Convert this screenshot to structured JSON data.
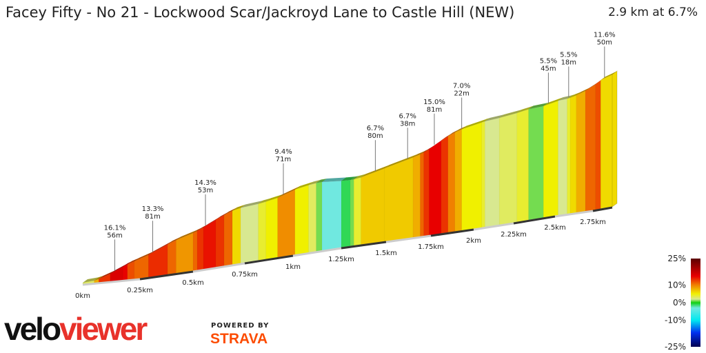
{
  "header": {
    "title": "Facey Fifty - No 21 - Lockwood Scar/Jackroyd Lane to Castle Hill (NEW)",
    "summary": "2.9 km at 6.7%"
  },
  "chart_data": {
    "type": "area",
    "title": "Facey Fifty - No 21 - Lockwood Scar/Jackroyd Lane to Castle Hill (NEW)",
    "xlabel": "",
    "ylabel": "",
    "xlim": [
      0,
      2.9
    ],
    "x_ticks": [
      "0km",
      "0.25km",
      "0.5km",
      "0.75km",
      "1km",
      "1.25km",
      "1.5km",
      "1.75km",
      "2km",
      "2.25km",
      "2.5km",
      "2.75km"
    ],
    "x_tick_values": [
      0,
      0.25,
      0.5,
      0.75,
      1,
      1.25,
      1.5,
      1.75,
      2,
      2.25,
      2.5,
      2.75
    ],
    "segments_km_end_gradient_pct": [
      [
        0.05,
        3
      ],
      [
        0.07,
        8
      ],
      [
        0.12,
        13
      ],
      [
        0.175,
        16
      ],
      [
        0.195,
        15
      ],
      [
        0.225,
        12
      ],
      [
        0.29,
        11
      ],
      [
        0.38,
        13.3
      ],
      [
        0.42,
        11
      ],
      [
        0.5,
        9
      ],
      [
        0.52,
        11
      ],
      [
        0.55,
        13
      ],
      [
        0.61,
        14.3
      ],
      [
        0.65,
        13
      ],
      [
        0.69,
        11
      ],
      [
        0.73,
        6
      ],
      [
        0.82,
        2
      ],
      [
        0.86,
        4
      ],
      [
        0.92,
        5
      ],
      [
        1.01,
        9.4
      ],
      [
        1.08,
        5
      ],
      [
        1.12,
        3
      ],
      [
        1.15,
        1
      ],
      [
        1.25,
        -3
      ],
      [
        1.3,
        -1
      ],
      [
        1.32,
        1
      ],
      [
        1.36,
        4
      ],
      [
        1.49,
        6.7
      ],
      [
        1.65,
        6.7
      ],
      [
        1.69,
        8
      ],
      [
        1.71,
        11
      ],
      [
        1.74,
        13
      ],
      [
        1.81,
        15
      ],
      [
        1.85,
        13
      ],
      [
        1.89,
        10
      ],
      [
        1.93,
        8
      ],
      [
        2.05,
        5
      ],
      [
        2.07,
        4
      ],
      [
        2.16,
        2
      ],
      [
        2.27,
        3
      ],
      [
        2.34,
        4
      ],
      [
        2.43,
        1
      ],
      [
        2.52,
        5
      ],
      [
        2.58,
        2
      ],
      [
        2.6,
        4
      ],
      [
        2.64,
        6
      ],
      [
        2.7,
        8
      ],
      [
        2.77,
        11
      ],
      [
        2.81,
        12
      ],
      [
        2.9,
        6
      ]
    ],
    "annotations": [
      {
        "km": 0.14,
        "grade": "16.1%",
        "length": "56m"
      },
      {
        "km": 0.31,
        "grade": "13.3%",
        "length": "81m"
      },
      {
        "km": 0.56,
        "grade": "14.3%",
        "length": "53m"
      },
      {
        "km": 0.95,
        "grade": "9.4%",
        "length": "71m"
      },
      {
        "km": 1.44,
        "grade": "6.7%",
        "length": "80m"
      },
      {
        "km": 1.62,
        "grade": "6.7%",
        "length": "38m"
      },
      {
        "km": 1.77,
        "grade": "15.0%",
        "length": "81m"
      },
      {
        "km": 1.93,
        "grade": "7.0%",
        "length": "22m"
      },
      {
        "km": 2.46,
        "grade": "5.5%",
        "length": "45m"
      },
      {
        "km": 2.59,
        "grade": "5.5%",
        "length": "18m"
      },
      {
        "km": 2.84,
        "grade": "11.6%",
        "length": "50m"
      }
    ],
    "legend": {
      "labels": [
        "25%",
        "10%",
        "0%",
        "-10%",
        "-25%"
      ],
      "stops": [
        [
          25,
          "#5a0000"
        ],
        [
          15,
          "#e80000"
        ],
        [
          10,
          "#f08000"
        ],
        [
          5,
          "#f0f000"
        ],
        [
          2,
          "#d8e890"
        ],
        [
          0,
          "#10d010"
        ],
        [
          -3,
          "#70e8e0"
        ],
        [
          -10,
          "#00e8f0"
        ],
        [
          -17,
          "#0030f0"
        ],
        [
          -25,
          "#000050"
        ]
      ],
      "placement": "bottom-right"
    }
  },
  "branding": {
    "logo_part1": "velo",
    "logo_part2": "viewer",
    "powered_by": "POWERED BY",
    "strava": "STRAVA"
  }
}
